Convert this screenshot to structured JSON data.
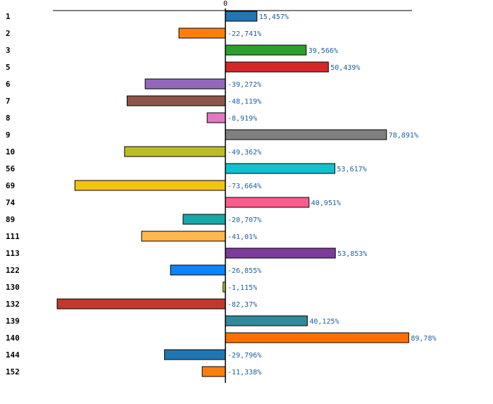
{
  "chart_data": {
    "type": "bar",
    "orientation": "horizontal",
    "title": "",
    "xlabel": "",
    "ylabel": "",
    "xlim": [
      -100,
      100
    ],
    "zero_tick_label": "0",
    "grid": false,
    "categories": [
      "1",
      "2",
      "3",
      "5",
      "6",
      "7",
      "8",
      "9",
      "10",
      "56",
      "69",
      "74",
      "89",
      "111",
      "113",
      "122",
      "130",
      "132",
      "139",
      "140",
      "144",
      "152"
    ],
    "values": [
      15.457,
      -22.741,
      39.566,
      50.439,
      -39.272,
      -48.119,
      -8.919,
      78.891,
      -49.362,
      53.617,
      -73.664,
      40.951,
      -20.707,
      -41.01,
      53.853,
      -26.855,
      -1.115,
      -82.37,
      40.125,
      89.78,
      -29.796,
      -11.338
    ],
    "value_labels": [
      "15,457%",
      "-22,741%",
      "39,566%",
      "50,439%",
      "-39,272%",
      "-48,119%",
      "-8,919%",
      "78,891%",
      "-49,362%",
      "53,617%",
      "-73,664%",
      "40,951%",
      "-20,707%",
      "-41,01%",
      "53,853%",
      "-26,855%",
      "-1,115%",
      "-82,37%",
      "40,125%",
      "89,78%",
      "-29,796%",
      "-11,338%"
    ],
    "colors": [
      "#1f77b4",
      "#ff7f0e",
      "#2ca02c",
      "#d62728",
      "#9467bd",
      "#8c564b",
      "#e377c2",
      "#7f7f7f",
      "#bcbd22",
      "#17becf",
      "#f1c40f",
      "#ff5c8d",
      "#17a8a8",
      "#ffb84d",
      "#7d3c98",
      "#0a84ff",
      "#a6e22e",
      "#c0392b",
      "#2e8b9a",
      "#ff6f00",
      "#1f77b4",
      "#ff7f0e"
    ]
  }
}
